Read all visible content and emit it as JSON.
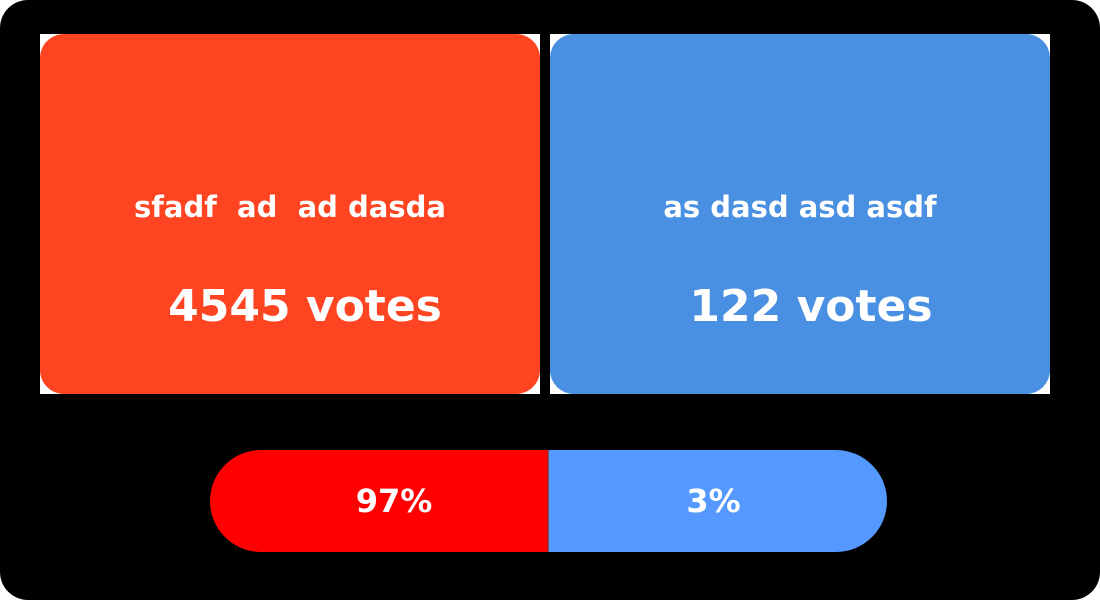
{
  "options": [
    {
      "title": "sfadf  ad  ad dasda",
      "votes_label": "4545 votes",
      "votes": 4545,
      "color": "#FF4422"
    },
    {
      "title": "as dasd asd asdf",
      "votes_label": "122 votes",
      "votes": 122,
      "color": "#4A90E2"
    }
  ],
  "results_bar": {
    "left": {
      "percent_label": "97%",
      "percent": 97,
      "color": "#FF0000"
    },
    "right": {
      "percent_label": "3%",
      "percent": 3,
      "color": "#5599FF"
    }
  },
  "colors": {
    "background": "#000000",
    "card_border": "#FFFFFF",
    "text": "#FFFFFF"
  }
}
